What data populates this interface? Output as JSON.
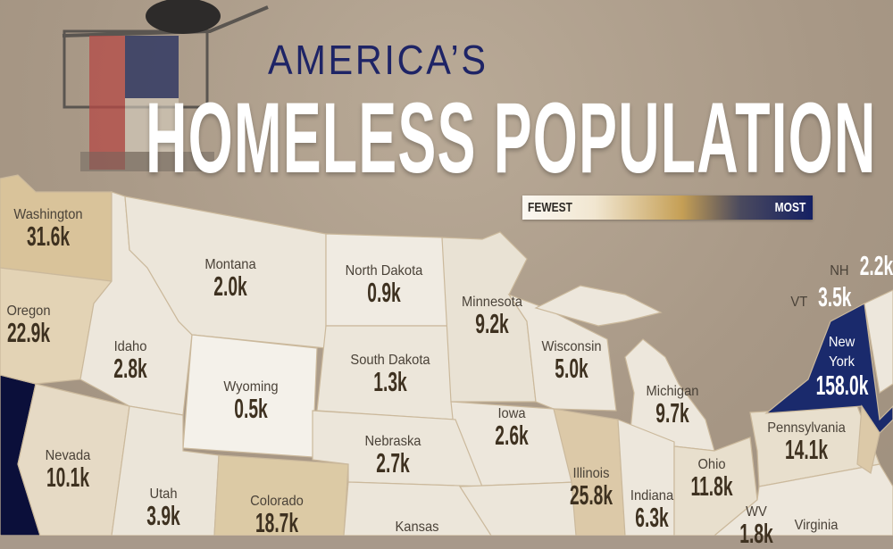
{
  "title": {
    "line1": "AMERICA’S",
    "line2": "HOMELESS POPULATION"
  },
  "legend": {
    "min_label": "FEWEST",
    "max_label": "MOST",
    "colors": [
      "#fbf8f2",
      "#c59f55",
      "#142063"
    ]
  },
  "colors": {
    "background": "#a8998a",
    "light_state": "#ece6da",
    "mid_state": "#dccaa5",
    "high_state": "#d9c39a",
    "max_state": "#1a2a6c"
  },
  "states": [
    {
      "name": "Washington",
      "value": "31.6k"
    },
    {
      "name": "Oregon",
      "value": "22.9k"
    },
    {
      "name": "Idaho",
      "value": "2.8k"
    },
    {
      "name": "Montana",
      "value": "2.0k"
    },
    {
      "name": "North Dakota",
      "value": "0.9k"
    },
    {
      "name": "South Dakota",
      "value": "1.3k"
    },
    {
      "name": "Wyoming",
      "value": "0.5k"
    },
    {
      "name": "Minnesota",
      "value": "9.2k"
    },
    {
      "name": "Wisconsin",
      "value": "5.0k"
    },
    {
      "name": "Michigan",
      "value": "9.7k"
    },
    {
      "name": "Iowa",
      "value": "2.6k"
    },
    {
      "name": "Nebraska",
      "value": "2.7k"
    },
    {
      "name": "Nevada",
      "value": "10.1k"
    },
    {
      "name": "Utah",
      "value": "3.9k"
    },
    {
      "name": "Colorado",
      "value": "18.7k"
    },
    {
      "name": "Kansas",
      "value": ""
    },
    {
      "name": "Illinois",
      "value": "25.8k"
    },
    {
      "name": "Indiana",
      "value": "6.3k"
    },
    {
      "name": "Ohio",
      "value": "11.8k"
    },
    {
      "name": "Pennsylvania",
      "value": "14.1k"
    },
    {
      "name": "New York",
      "value": "158.0k"
    },
    {
      "name": "WV",
      "value": "1.8k"
    },
    {
      "name": "Virginia",
      "value": ""
    },
    {
      "name": "VT",
      "value": "3.5k"
    },
    {
      "name": "NH",
      "value": "2.2k"
    }
  ]
}
